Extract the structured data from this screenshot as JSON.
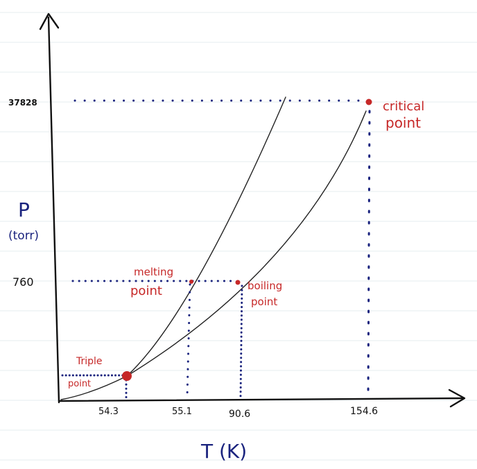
{
  "axes": {
    "y_label": "P",
    "y_unit": "(torr)",
    "x_label": "T (K)"
  },
  "y_ticks": [
    {
      "label": "37828"
    },
    {
      "label": "760"
    }
  ],
  "x_ticks": [
    {
      "label": "54.3"
    },
    {
      "label": "55.1"
    },
    {
      "label": "90.6"
    },
    {
      "label": "154.6"
    }
  ],
  "points": {
    "triple_line1": "Triple",
    "triple_line2": "point",
    "melting_line1": "melting",
    "melting_line2": "point",
    "boiling_line1": "boiling",
    "boiling_line2": "point",
    "critical_line1": "critical",
    "critical_line2": "point"
  },
  "colors": {
    "axis": "#111111",
    "curve": "#222222",
    "guide_dots": "#1a237e",
    "point_markers": "#c62828",
    "annotation_text": "#c62828",
    "axis_labels": "#1a237e",
    "ruled_lines": "#e6ecef"
  }
}
